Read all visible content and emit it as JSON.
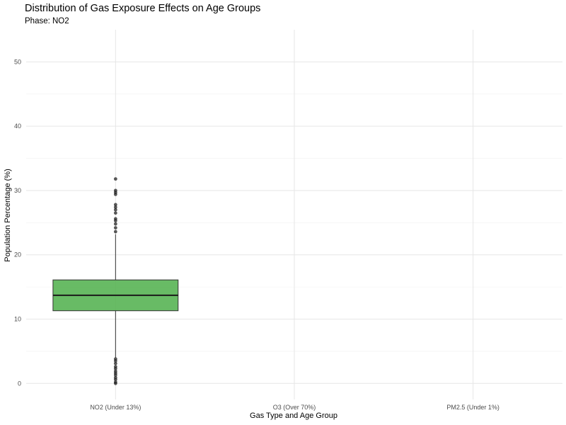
{
  "chart_data": {
    "type": "boxplot",
    "title": "Distribution of Gas Exposure Effects on Age Groups",
    "subtitle": "Phase: NO2",
    "xlabel": "Gas Type and Age Group",
    "ylabel": "Population Percentage (%)",
    "categories": [
      "NO2 (Under 13%)",
      "O3 (Over 70%)",
      "PM2.5 (Under 1%)"
    ],
    "ylim": [
      -2.5,
      55
    ],
    "yticks": [
      0,
      10,
      20,
      30,
      40,
      50
    ],
    "grid": true,
    "legend": "none",
    "box_color": "#4daf4a",
    "boxes": [
      {
        "category": "NO2 (Under 13%)",
        "whisker_low": 4.0,
        "q1": 11.3,
        "median": 13.7,
        "q3": 16.1,
        "whisker_high": 23.2,
        "outliers": [
          0.0,
          0.2,
          0.6,
          0.9,
          1.3,
          1.6,
          1.9,
          2.3,
          2.6,
          3.1,
          3.5,
          3.8,
          23.6,
          24.2,
          24.8,
          25.3,
          25.6,
          26.5,
          27.0,
          27.4,
          27.8,
          29.4,
          29.7,
          30.0,
          31.8
        ]
      }
    ]
  }
}
